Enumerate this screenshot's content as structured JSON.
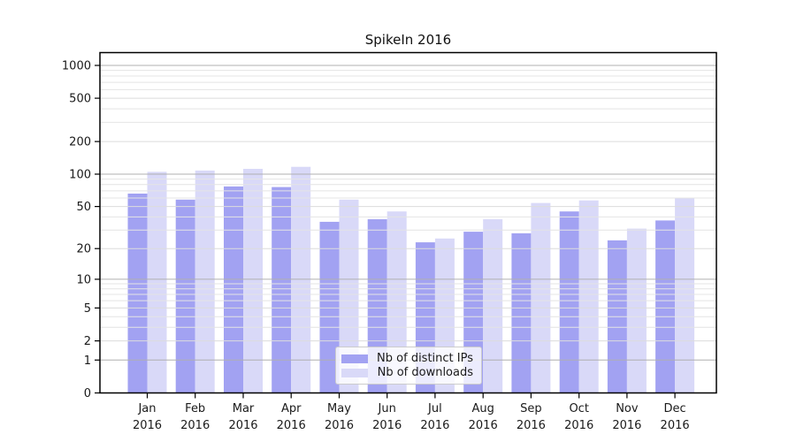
{
  "title": "SpikeIn 2016",
  "colors": {
    "series_ips": "#a2a2f2",
    "series_downloads": "#d9d9f8",
    "major_grid": "#b0b0b0",
    "minor_grid": "#e4e4e4",
    "spine": "#000000",
    "text": "#1a1a1a",
    "background": "#ffffff",
    "legend_border": "#cccccc"
  },
  "chart_data": {
    "type": "bar",
    "title": "SpikeIn 2016",
    "categories": [
      "Jan",
      "Feb",
      "Mar",
      "Apr",
      "May",
      "Jun",
      "Jul",
      "Aug",
      "Sep",
      "Oct",
      "Nov",
      "Dec"
    ],
    "x_year_label": "2016",
    "series": [
      {
        "name": "Nb of distinct IPs",
        "color": "#a2a2f2",
        "values": [
          66,
          58,
          77,
          76,
          36,
          38,
          23,
          29,
          28,
          45,
          24,
          37
        ]
      },
      {
        "name": "Nb of downloads",
        "color": "#d9d9f8",
        "values": [
          105,
          108,
          112,
          117,
          58,
          45,
          25,
          38,
          54,
          57,
          31,
          60
        ]
      }
    ],
    "xlabel": "",
    "ylabel": "",
    "y_scale": "log1p",
    "ylim": [
      0,
      1300
    ],
    "y_ticks": [
      0,
      1,
      2,
      5,
      10,
      20,
      50,
      100,
      200,
      500,
      1000
    ],
    "y_major_gridlines": [
      1,
      10,
      100,
      1000
    ],
    "y_minor_gridlines": [
      3,
      4,
      6,
      7,
      8,
      9,
      30,
      40,
      60,
      70,
      80,
      90,
      300,
      400,
      600,
      700,
      800,
      900
    ],
    "grid": "on",
    "legend_position": "lower center"
  }
}
